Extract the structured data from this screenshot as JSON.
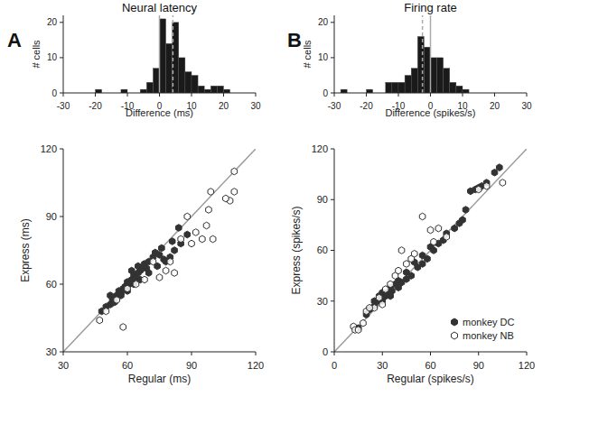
{
  "chart_data": [
    {
      "type": "histogram",
      "panel": "A",
      "title": "Neural latency",
      "x_label": "Difference (ms)",
      "y_label": "# cells",
      "bins": [
        -30,
        -28,
        -26,
        -24,
        -22,
        -20,
        -18,
        -16,
        -14,
        -12,
        -10,
        -8,
        -6,
        -4,
        -2,
        0,
        2,
        4,
        6,
        8,
        10,
        12,
        14,
        16,
        18,
        20,
        22,
        24,
        26,
        28,
        30
      ],
      "values": [
        0,
        0,
        0,
        0,
        0,
        1,
        0,
        0,
        0,
        1,
        0,
        0,
        1,
        3,
        7,
        21,
        14,
        20,
        10,
        6,
        5,
        2,
        1,
        2,
        2,
        1,
        0,
        0,
        0,
        0
      ],
      "color": "#1a1a1a",
      "xlim": [
        -30,
        30
      ],
      "xticks": [
        -30,
        -20,
        -10,
        0,
        10,
        20,
        30
      ],
      "ylim": [
        0,
        22
      ],
      "yticks": [
        0,
        10,
        20
      ],
      "vlines": [
        {
          "value": 0,
          "line_style": "solid"
        },
        {
          "value": 4.2,
          "line_style": "dashed"
        }
      ]
    },
    {
      "type": "scatter",
      "x_label": "Regular (ms)",
      "y_label": "Express (ms)",
      "xlim": [
        30,
        120
      ],
      "xticks": [
        30,
        60,
        90,
        120
      ],
      "ylim": [
        30,
        120
      ],
      "yticks": [
        30,
        60,
        90,
        120
      ],
      "series": [
        {
          "type": "line",
          "color": "#9a9a9a",
          "line_style": "solid",
          "x": [
            30,
            120
          ],
          "values": [
            30,
            120
          ]
        },
        {
          "name": "monkey DC",
          "color": "#333333",
          "marker": "hexagon-filled",
          "x": [
            48,
            50,
            52,
            53,
            55,
            56,
            57,
            58,
            59,
            60,
            61,
            62,
            63,
            64,
            65,
            66,
            67,
            68,
            69,
            70,
            72,
            73,
            75,
            76,
            78,
            80,
            82,
            84,
            85,
            88,
            70,
            66,
            63,
            60,
            57,
            74,
            77,
            81,
            54,
            52,
            65,
            62
          ],
          "values": [
            48,
            50,
            51,
            53,
            55,
            57,
            56,
            58,
            59,
            61,
            60,
            62,
            64,
            63,
            65,
            66,
            67,
            69,
            67,
            70,
            72,
            74,
            73,
            76,
            70,
            72,
            75,
            85,
            78,
            82,
            65,
            62,
            60,
            57,
            55,
            68,
            71,
            79,
            52,
            55,
            68,
            66
          ]
        },
        {
          "name": "monkey NB",
          "color": "#333333",
          "marker": "hexagon-open",
          "x": [
            47,
            50,
            55,
            58,
            60,
            64,
            68,
            75,
            80,
            82,
            85,
            88,
            90,
            92,
            95,
            97,
            98,
            99,
            100,
            108,
            110,
            110,
            106,
            72,
            78
          ],
          "values": [
            44,
            48,
            53,
            41,
            58,
            60,
            62,
            63,
            70,
            65,
            80,
            90,
            78,
            83,
            80,
            86,
            93,
            101,
            80,
            97,
            101,
            110,
            98,
            70,
            66
          ]
        }
      ]
    },
    {
      "type": "histogram",
      "panel": "B",
      "title": "Firing rate",
      "x_label": "Difference (spikes/s)",
      "y_label": "# cells",
      "bins": [
        -30,
        -28,
        -26,
        -24,
        -22,
        -20,
        -18,
        -16,
        -14,
        -12,
        -10,
        -8,
        -6,
        -4,
        -2,
        0,
        2,
        4,
        6,
        8,
        10,
        12,
        14,
        16,
        18,
        20,
        22,
        24,
        26,
        28,
        30
      ],
      "values": [
        0,
        1,
        0,
        0,
        0,
        1,
        0,
        0,
        3,
        3,
        3,
        5,
        7,
        16,
        13,
        10,
        10,
        7,
        3,
        2,
        1,
        0,
        0,
        0,
        0,
        0,
        0,
        0,
        0,
        0
      ],
      "color": "#1a1a1a",
      "xlim": [
        -30,
        30
      ],
      "xticks": [
        -30,
        -20,
        -10,
        0,
        10,
        20,
        30
      ],
      "ylim": [
        0,
        22
      ],
      "yticks": [
        0,
        10,
        20
      ],
      "vlines": [
        {
          "value": 0,
          "line_style": "solid"
        },
        {
          "value": -2.5,
          "line_style": "dashed"
        }
      ]
    },
    {
      "type": "scatter",
      "x_label": "Regular (spikes/s)",
      "y_label": "Express (spikes/s)",
      "legend": "lower right",
      "xlim": [
        0,
        120
      ],
      "xticks": [
        0,
        30,
        60,
        90,
        120
      ],
      "ylim": [
        0,
        120
      ],
      "yticks": [
        0,
        30,
        60,
        90,
        120
      ],
      "series": [
        {
          "type": "line",
          "color": "#9a9a9a",
          "line_style": "solid",
          "x": [
            0,
            120
          ],
          "values": [
            0,
            120
          ]
        },
        {
          "name": "monkey DC",
          "color": "#333333",
          "marker": "hexagon-filled",
          "x": [
            15,
            20,
            22,
            25,
            27,
            28,
            30,
            30,
            32,
            33,
            35,
            36,
            38,
            40,
            42,
            45,
            48,
            50,
            52,
            55,
            58,
            60,
            62,
            65,
            68,
            70,
            75,
            78,
            80,
            82,
            85,
            88,
            90,
            92,
            95,
            100,
            103,
            25,
            35,
            45,
            55,
            40,
            30
          ],
          "values": [
            14,
            22,
            25,
            27,
            30,
            33,
            30,
            35,
            33,
            35,
            38,
            36,
            40,
            42,
            41,
            47,
            45,
            53,
            50,
            57,
            55,
            62,
            60,
            64,
            66,
            70,
            73,
            76,
            78,
            84,
            95,
            96,
            97,
            98,
            100,
            106,
            109,
            30,
            33,
            43,
            52,
            38,
            32
          ]
        },
        {
          "name": "monkey NB",
          "color": "#333333",
          "marker": "hexagon-open",
          "x": [
            12,
            13,
            18,
            20,
            25,
            28,
            30,
            32,
            35,
            38,
            40,
            42,
            45,
            48,
            50,
            55,
            60,
            62,
            65,
            70,
            90,
            95,
            105,
            15,
            22
          ],
          "values": [
            15,
            13,
            17,
            24,
            26,
            32,
            28,
            37,
            40,
            45,
            48,
            60,
            52,
            55,
            58,
            80,
            72,
            65,
            73,
            68,
            96,
            98,
            100,
            13,
            26
          ]
        }
      ]
    }
  ]
}
